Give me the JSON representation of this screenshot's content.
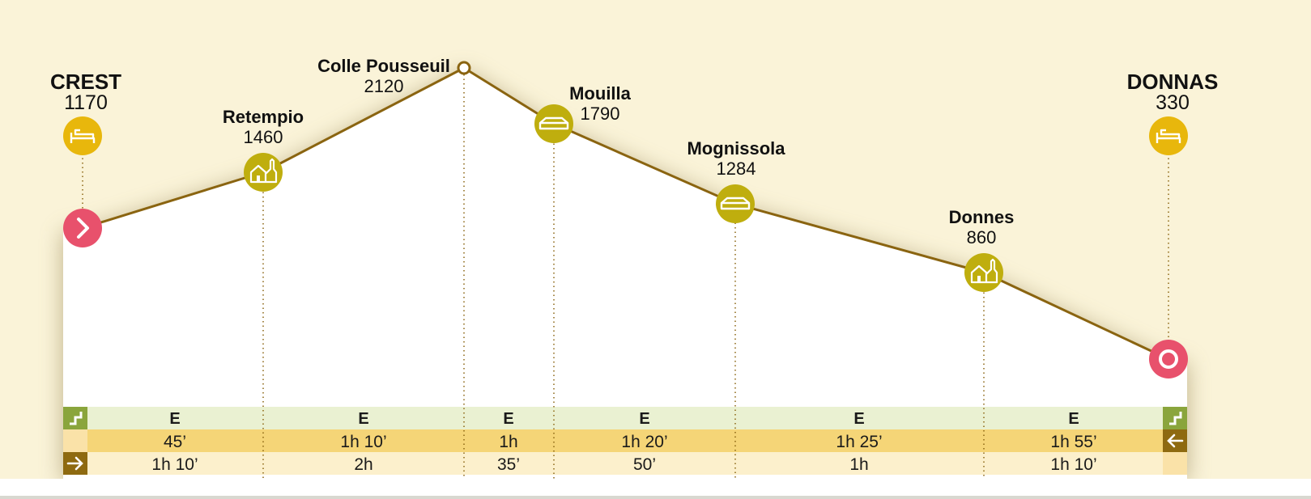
{
  "route": {
    "start": {
      "name": "CREST",
      "altitude": "1170"
    },
    "end": {
      "name": "DONNAS",
      "altitude": "330"
    }
  },
  "waypoints": [
    {
      "name": "Retempio",
      "altitude": "1460",
      "icon": "village-icon"
    },
    {
      "name": "Colle Pousseuil",
      "altitude": "2120",
      "icon": "pass-marker-icon"
    },
    {
      "name": "Mouilla",
      "altitude": "1790",
      "icon": "hut-icon"
    },
    {
      "name": "Mognissola",
      "altitude": "1284",
      "icon": "hut-icon"
    },
    {
      "name": "Donnes",
      "altitude": "860",
      "icon": "village-icon"
    }
  ],
  "segments": [
    {
      "difficulty": "E",
      "time_forward": "45’",
      "time_return": "1h 10’"
    },
    {
      "difficulty": "E",
      "time_forward": "1h 10’",
      "time_return": "2h"
    },
    {
      "difficulty": "E",
      "time_forward": "1h",
      "time_return": "35’"
    },
    {
      "difficulty": "E",
      "time_forward": "1h 20’",
      "time_return": "50’"
    },
    {
      "difficulty": "E",
      "time_forward": "1h 25’",
      "time_return": "1h"
    },
    {
      "difficulty": "E",
      "time_forward": "1h 55’",
      "time_return": "1h 10’"
    }
  ],
  "icons": {
    "start": "start-arrow-icon",
    "end": "end-ring-icon",
    "bed": "bed-icon",
    "difficulty_row": "difficulty-step-icon",
    "forward_row": "forward-arrow-icon",
    "return_row": "return-arrow-icon"
  },
  "colors": {
    "background": "#faf3d8",
    "profile_line": "#8a6410",
    "marker_yellow": "#e8b70c",
    "marker_olive": "#bfae0e",
    "marker_red": "#e8516c",
    "row_difficulty": "#eaf1d2",
    "row_forward": "#f5d577",
    "row_return": "#fcf0cc",
    "row_icon_green": "#8aa53c",
    "row_icon_brown": "#8e6a10"
  }
}
